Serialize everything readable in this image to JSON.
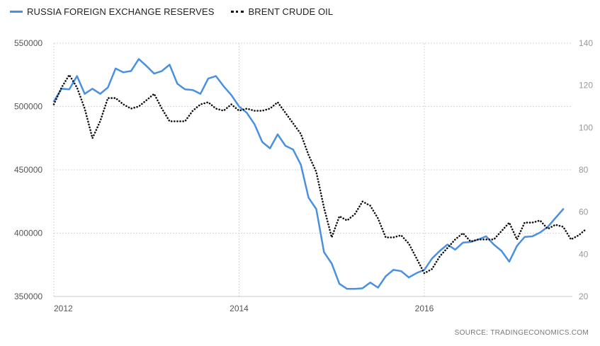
{
  "chart_data": {
    "type": "line",
    "title": "",
    "xlabel": "",
    "ylabel": "",
    "grid": true,
    "legend_position": "top-left",
    "x_ticks": [
      "2012",
      "2014",
      "2016"
    ],
    "y_left_ticks": [
      "550000",
      "500000",
      "450000",
      "400000",
      "350000"
    ],
    "y_left_lim": [
      350000,
      550000
    ],
    "y_right_ticks": [
      "140",
      "120",
      "100",
      "80",
      "60",
      "40",
      "20"
    ],
    "y_right_lim": [
      20,
      140
    ],
    "x_start": "2012-01",
    "series": [
      {
        "name": "RUSSIA FOREIGN EXCHANGE RESERVES",
        "axis": "left",
        "color": "#4a90e2",
        "style": "solid",
        "values": [
          504000,
          514000,
          513500,
          524000,
          510000,
          514000,
          510000,
          515000,
          530000,
          527000,
          528000,
          537500,
          532000,
          526000,
          528000,
          533000,
          518000,
          513500,
          513000,
          510000,
          522000,
          524000,
          516000,
          509000,
          500000,
          495000,
          486000,
          472000,
          467000,
          478000,
          469000,
          466000,
          454000,
          428000,
          419000,
          385000,
          376000,
          360000,
          356000,
          356000,
          356500,
          361000,
          357000,
          366000,
          371000,
          370000,
          365000,
          368500,
          371000,
          380000,
          386000,
          391000,
          387000,
          392500,
          393000,
          395000,
          397500,
          391000,
          386000,
          377500,
          390000,
          397000,
          397500,
          400500,
          405000,
          412000,
          419000
        ]
      },
      {
        "name": "BRENT CRUDE OIL",
        "axis": "right",
        "color": "#111111",
        "style": "dotted",
        "values": [
          111,
          119,
          125,
          119,
          109,
          95,
          103,
          114,
          114,
          111,
          109,
          110,
          113,
          116,
          109,
          103,
          103,
          103,
          108,
          111,
          112,
          109,
          108,
          111,
          108,
          109,
          108,
          108,
          109,
          112,
          107,
          102,
          97,
          87,
          79,
          62,
          48,
          58,
          56,
          59,
          65,
          63,
          57,
          48,
          48,
          49,
          45,
          38,
          31,
          33,
          39,
          43,
          47,
          50,
          46,
          47,
          47,
          47,
          51,
          55,
          47,
          55,
          55,
          56,
          52,
          54,
          53,
          47,
          49,
          52
        ]
      }
    ]
  },
  "legend": {
    "item1": "RUSSIA FOREIGN EXCHANGE RESERVES",
    "item2": "BRENT CRUDE OIL"
  },
  "source": "SOURCE: TRADINGECONOMICS.COM"
}
